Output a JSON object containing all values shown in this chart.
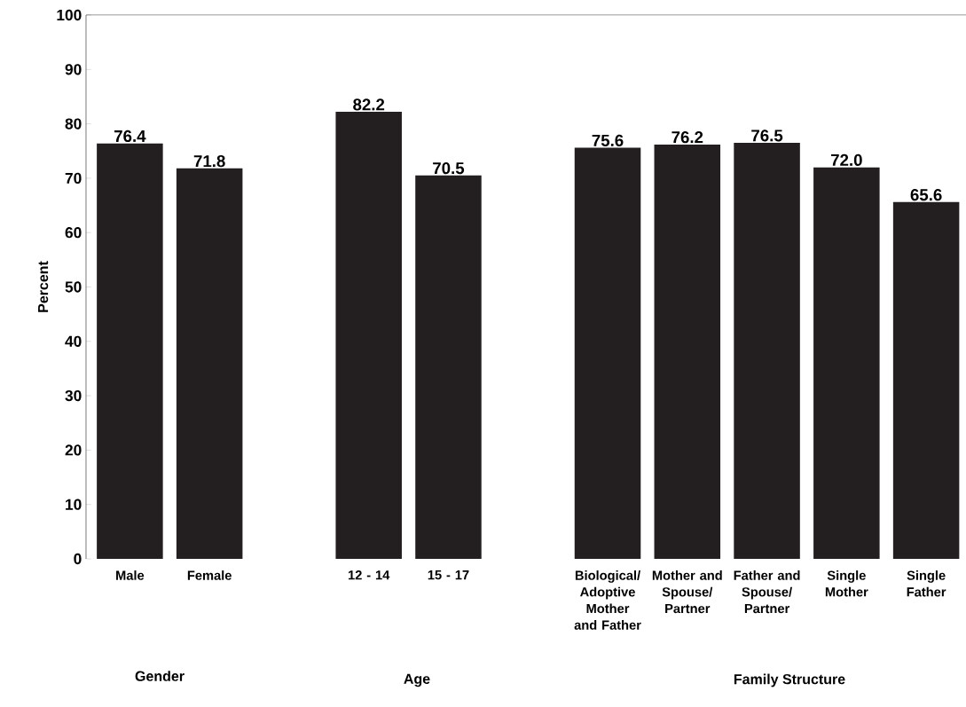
{
  "chart_data": {
    "type": "bar",
    "ylabel": "Percent",
    "categories": [
      "Male",
      "Female",
      null,
      "12 - 14",
      "15 - 17",
      null,
      "Biological/ Adoptive Mother and Father",
      "Mother and Spouse/ Partner",
      "Father and Spouse/ Partner",
      "Single Mother",
      "Single Father"
    ],
    "values": [
      76.4,
      71.8,
      null,
      82.2,
      70.5,
      null,
      75.6,
      76.2,
      76.5,
      72.0,
      65.6
    ],
    "value_labels": [
      "76.4",
      "71.8",
      null,
      "82.2",
      "70.5",
      null,
      "75.6",
      "76.2",
      "76.5",
      "72.0",
      "65.6"
    ],
    "color": "#231f20",
    "ylim": [
      0,
      100
    ],
    "yticks": [
      0,
      10,
      20,
      30,
      40,
      50,
      60,
      70,
      80,
      90,
      100
    ],
    "grid": false,
    "annotations": [
      "Gender",
      "Age",
      "Family Structure"
    ]
  }
}
